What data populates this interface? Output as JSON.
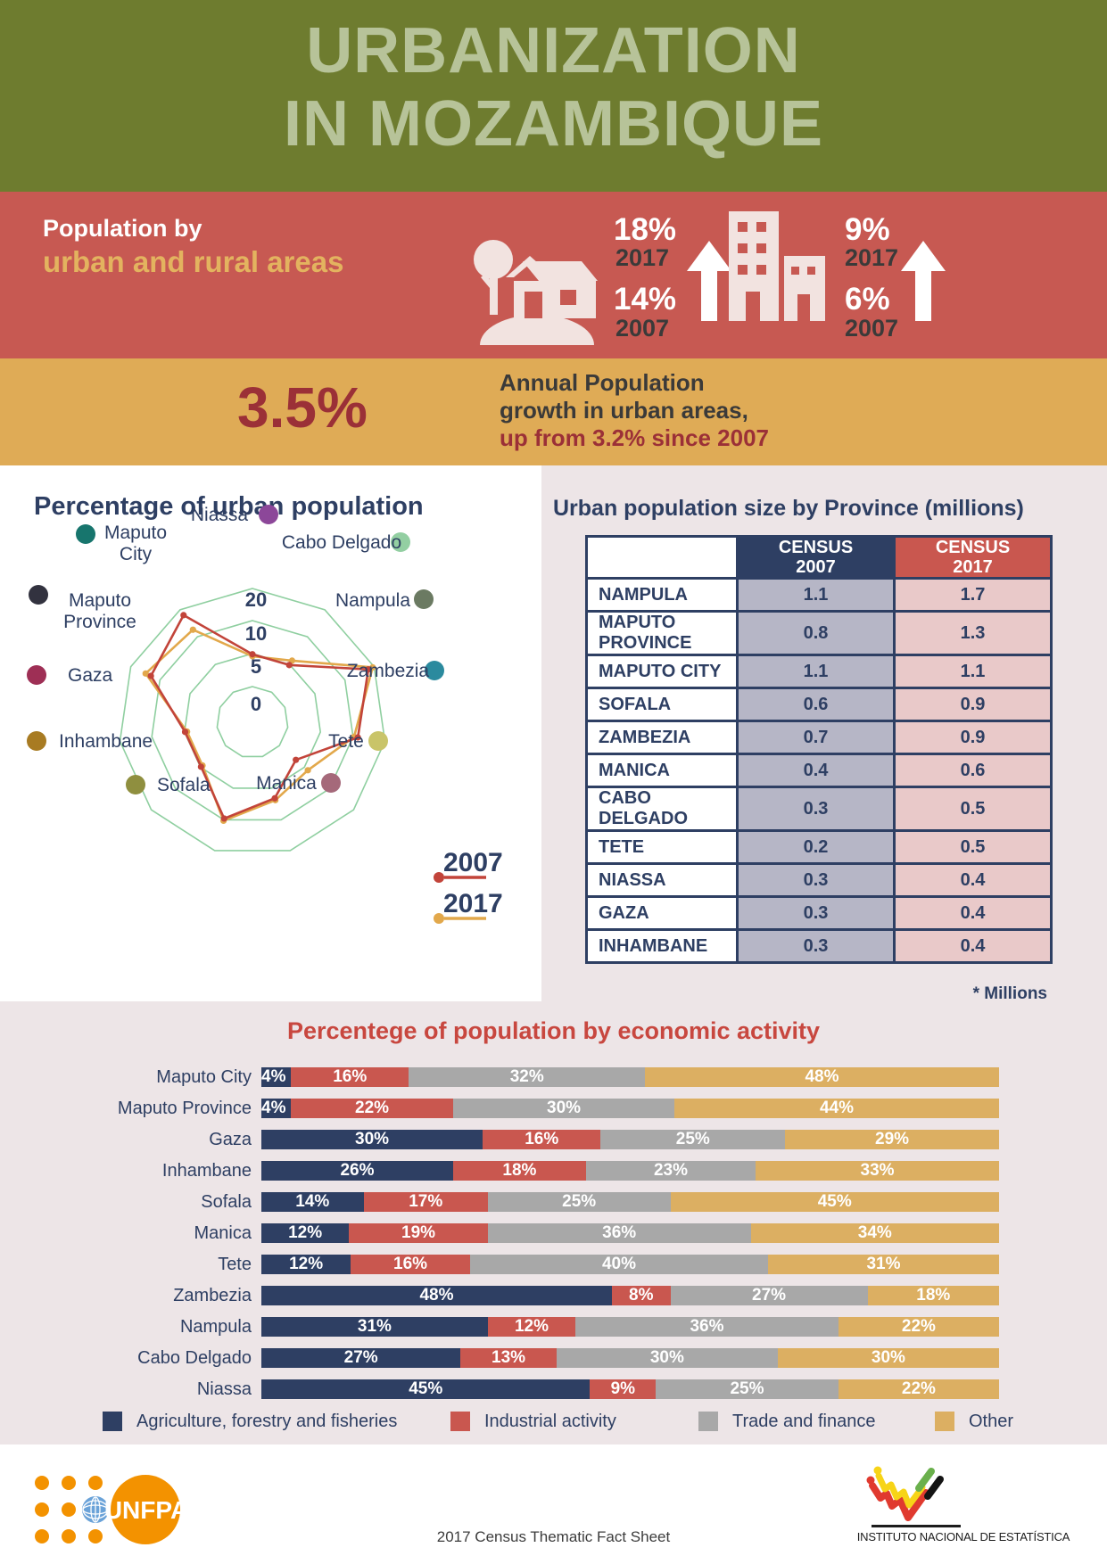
{
  "header": {
    "title_line1": "URBANIZATION",
    "title_line2": "IN MOZAMBIQUE"
  },
  "population_band": {
    "label_line1": "Population by",
    "label_line2": "urban and rural areas",
    "rural": {
      "value_2017": "18%",
      "year_2017": "2017",
      "value_2007": "14%",
      "year_2007": "2007"
    },
    "urban": {
      "value_2017": "9%",
      "year_2017": "2017",
      "value_2007": "6%",
      "year_2007": "2007"
    }
  },
  "growth_band": {
    "stat": "3.5%",
    "text_line1": "Annual Population",
    "text_line2": "growth in urban areas,",
    "text_line3": "up from 3.2% since 2007"
  },
  "radar_panel": {
    "title": "Percentage of urban population"
  },
  "table_panel": {
    "title": "Urban population size by Province (millions)",
    "note": "* Millions",
    "header_2007_line1": "CENSUS",
    "header_2007_line2": "2007",
    "header_2017_line1": "CENSUS",
    "header_2017_line2": "2017"
  },
  "footer": {
    "unfpa_label": "UNFPA",
    "center_text": "2017 Census Thematic Fact Sheet",
    "ine_caption": "INSTITUTO NACIONAL DE ESTATÍSTICA"
  },
  "chart_data": [
    {
      "type": "radar",
      "title": "Percentage of urban population",
      "categories": [
        "Niassa",
        "Cabo Delgado",
        "Nampula",
        "Zambezia",
        "Tete",
        "Manica",
        "Sofala",
        "Inhambane",
        "Gaza",
        "Maputo Province",
        "Maputo City"
      ],
      "category_dot_colors": [
        "#8c4799",
        "#93cfa2",
        "#6b7a62",
        "#2b8a9e",
        "#c9c469",
        "#a5697a",
        "#8f8f3f",
        "#a87b22",
        "#9e2f55",
        "#32323f",
        "#17756d"
      ],
      "ring_values": [
        0,
        5,
        10,
        20
      ],
      "ring_color": "#8fcfa0",
      "legend_position": "bottom-right",
      "series": [
        {
          "name": "2007",
          "color": "#c2443a",
          "values": [
            4.9,
            4.9,
            18.0,
            11.5,
            3.3,
            6.6,
            9.8,
            4.9,
            4.9,
            13.1,
            18.0
          ],
          "note": "values estimated from figure (share of national urban population, %)"
        },
        {
          "name": "2017",
          "color": "#e2a84b",
          "values": [
            4.6,
            5.7,
            19.5,
            10.3,
            5.7,
            6.9,
            10.3,
            4.6,
            4.6,
            14.9,
            12.6
          ],
          "note": "values estimated from figure (share of national urban population, %)"
        }
      ]
    },
    {
      "type": "table",
      "title": "Urban population size by Province (millions)",
      "columns": [
        "",
        "CENSUS 2007",
        "CENSUS 2017"
      ],
      "rows": [
        {
          "province": "NAMPULA",
          "census_2007": "1.1",
          "census_2017": "1.7"
        },
        {
          "province": "MAPUTO PROVINCE",
          "census_2007": "0.8",
          "census_2017": "1.3"
        },
        {
          "province": "MAPUTO CITY",
          "census_2007": "1.1",
          "census_2017": "1.1"
        },
        {
          "province": "SOFALA",
          "census_2007": "0.6",
          "census_2017": "0.9"
        },
        {
          "province": "ZAMBEZIA",
          "census_2007": "0.7",
          "census_2017": "0.9"
        },
        {
          "province": "MANICA",
          "census_2007": "0.4",
          "census_2017": "0.6"
        },
        {
          "province": "CABO DELGADO",
          "census_2007": "0.3",
          "census_2017": "0.5"
        },
        {
          "province": "TETE",
          "census_2007": "0.2",
          "census_2017": "0.5"
        },
        {
          "province": "NIASSA",
          "census_2007": "0.3",
          "census_2017": "0.4"
        },
        {
          "province": "GAZA",
          "census_2007": "0.3",
          "census_2017": "0.4"
        },
        {
          "province": "INHAMBANE",
          "census_2007": "0.3",
          "census_2017": "0.4"
        }
      ]
    },
    {
      "type": "bar",
      "subtype": "horizontal-stacked",
      "title": "Percentege of population by economic activity",
      "categories": [
        "Maputo City",
        "Maputo Province",
        "Gaza",
        "Inhambane",
        "Sofala",
        "Manica",
        "Tete",
        "Zambezia",
        "Nampula",
        "Cabo Delgado",
        "Niassa"
      ],
      "series": [
        {
          "name": "Agriculture, forestry and fisheries",
          "color": "#2e3f63",
          "values": [
            4,
            4,
            30,
            26,
            14,
            12,
            12,
            48,
            31,
            27,
            45
          ]
        },
        {
          "name": "Industrial activity",
          "color": "#c9574f",
          "values": [
            16,
            22,
            16,
            18,
            17,
            19,
            16,
            8,
            12,
            13,
            9
          ]
        },
        {
          "name": "Trade and finance",
          "color": "#a8a8a8",
          "values": [
            32,
            30,
            25,
            23,
            25,
            36,
            40,
            27,
            36,
            30,
            25
          ]
        },
        {
          "name": "Other",
          "color": "#dcaf62",
          "values": [
            48,
            44,
            29,
            33,
            45,
            34,
            31,
            18,
            22,
            30,
            22
          ]
        }
      ],
      "value_suffix": "%",
      "legend_position": "bottom"
    }
  ]
}
